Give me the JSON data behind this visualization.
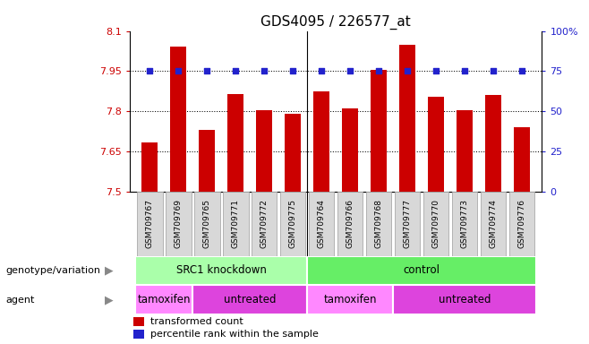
{
  "title": "GDS4095 / 226577_at",
  "samples": [
    "GSM709767",
    "GSM709769",
    "GSM709765",
    "GSM709771",
    "GSM709772",
    "GSM709775",
    "GSM709764",
    "GSM709766",
    "GSM709768",
    "GSM709777",
    "GSM709770",
    "GSM709773",
    "GSM709774",
    "GSM709776"
  ],
  "bar_values": [
    7.685,
    8.04,
    7.73,
    7.865,
    7.805,
    7.79,
    7.875,
    7.81,
    7.955,
    8.05,
    7.855,
    7.805,
    7.86,
    7.74
  ],
  "percentile_values": [
    75,
    75,
    75,
    75,
    75,
    75,
    75,
    75,
    75,
    75,
    75,
    75,
    75,
    75
  ],
  "bar_color": "#cc0000",
  "dot_color": "#2222cc",
  "bg_color": "#ffffff",
  "ylim_left": [
    7.5,
    8.1
  ],
  "ylim_right": [
    0,
    100
  ],
  "yticks_left": [
    7.5,
    7.65,
    7.8,
    7.95,
    8.1
  ],
  "ytick_labels_left": [
    "7.5",
    "7.65",
    "7.8",
    "7.95",
    "8.1"
  ],
  "yticks_right": [
    0,
    25,
    50,
    75,
    100
  ],
  "ytick_labels_right": [
    "0",
    "25",
    "50",
    "75",
    "100%"
  ],
  "hlines": [
    7.65,
    7.8,
    7.95
  ],
  "group_divider": 5.5,
  "genotype_groups": [
    {
      "label": "SRC1 knockdown",
      "start": 0,
      "end": 6,
      "color": "#aaffaa"
    },
    {
      "label": "control",
      "start": 6,
      "end": 14,
      "color": "#66ee66"
    }
  ],
  "agent_groups": [
    {
      "label": "tamoxifen",
      "start": 0,
      "end": 2,
      "color": "#ff88ff"
    },
    {
      "label": "untreated",
      "start": 2,
      "end": 6,
      "color": "#dd44dd"
    },
    {
      "label": "tamoxifen",
      "start": 6,
      "end": 9,
      "color": "#ff88ff"
    },
    {
      "label": "untreated",
      "start": 9,
      "end": 14,
      "color": "#dd44dd"
    }
  ],
  "legend_labels": [
    "transformed count",
    "percentile rank within the sample"
  ],
  "legend_colors": [
    "#cc0000",
    "#2222cc"
  ],
  "left_labels": [
    "genotype/variation",
    "agent"
  ],
  "bar_width": 0.55,
  "xlim": [
    -0.7,
    13.7
  ]
}
